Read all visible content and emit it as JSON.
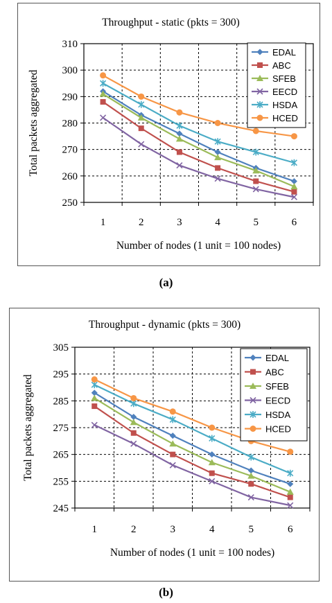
{
  "figures": [
    {
      "caption": "(a)",
      "chart_data": {
        "type": "line",
        "title": "Throughput - static (pkts = 300)",
        "xlabel": "Number of nodes (1 unit = 100 nodes)",
        "ylabel": "Total packets aggregated",
        "categories": [
          "1",
          "2",
          "3",
          "4",
          "5",
          "6"
        ],
        "ylim": [
          250,
          310
        ],
        "yticks": [
          250,
          260,
          270,
          280,
          290,
          300,
          310
        ],
        "grid": true,
        "legend_position": "top-right",
        "series": [
          {
            "name": "EDAL",
            "color": "#4F81BD",
            "marker": "diamond",
            "values": [
              292,
              283,
              276,
              269,
              263,
              258
            ]
          },
          {
            "name": "ABC",
            "color": "#C0504D",
            "marker": "square",
            "values": [
              288,
              278,
              269,
              263,
              258,
              254
            ]
          },
          {
            "name": "SFEB",
            "color": "#9BBB59",
            "marker": "triangle",
            "values": [
              291,
              282,
              274,
              267,
              262,
              256
            ]
          },
          {
            "name": "EECD",
            "color": "#8064A2",
            "marker": "x",
            "values": [
              282,
              272,
              264,
              259,
              255,
              252
            ]
          },
          {
            "name": "HSDA",
            "color": "#4BACC6",
            "marker": "star",
            "values": [
              295,
              287,
              279,
              273,
              269,
              265
            ]
          },
          {
            "name": "HCED",
            "color": "#F79646",
            "marker": "circle",
            "values": [
              298,
              290,
              284,
              280,
              277,
              275
            ]
          }
        ]
      }
    },
    {
      "caption": "(b)",
      "chart_data": {
        "type": "line",
        "title": "Throughput - dynamic (pkts = 300)",
        "xlabel": "Number of nodes (1 unit = 100 nodes)",
        "ylabel": "Total packets aggregated",
        "categories": [
          "1",
          "2",
          "3",
          "4",
          "5",
          "6"
        ],
        "ylim": [
          245,
          305
        ],
        "yticks": [
          245,
          255,
          265,
          275,
          285,
          295,
          305
        ],
        "grid": true,
        "legend_position": "top-right",
        "series": [
          {
            "name": "EDAL",
            "color": "#4F81BD",
            "marker": "diamond",
            "values": [
              288,
              279,
              272,
              265,
              259,
              254
            ]
          },
          {
            "name": "ABC",
            "color": "#C0504D",
            "marker": "square",
            "values": [
              283,
              273,
              265,
              258,
              254,
              249
            ]
          },
          {
            "name": "SFEB",
            "color": "#9BBB59",
            "marker": "triangle",
            "values": [
              286,
              277,
              269,
              262,
              257,
              251
            ]
          },
          {
            "name": "EECD",
            "color": "#8064A2",
            "marker": "x",
            "values": [
              276,
              269,
              261,
              255,
              249,
              246
            ]
          },
          {
            "name": "HSDA",
            "color": "#4BACC6",
            "marker": "star",
            "values": [
              291,
              284,
              278,
              271,
              264,
              258
            ]
          },
          {
            "name": "HCED",
            "color": "#F79646",
            "marker": "circle",
            "values": [
              293,
              286,
              281,
              275,
              270,
              266
            ]
          }
        ]
      }
    }
  ]
}
